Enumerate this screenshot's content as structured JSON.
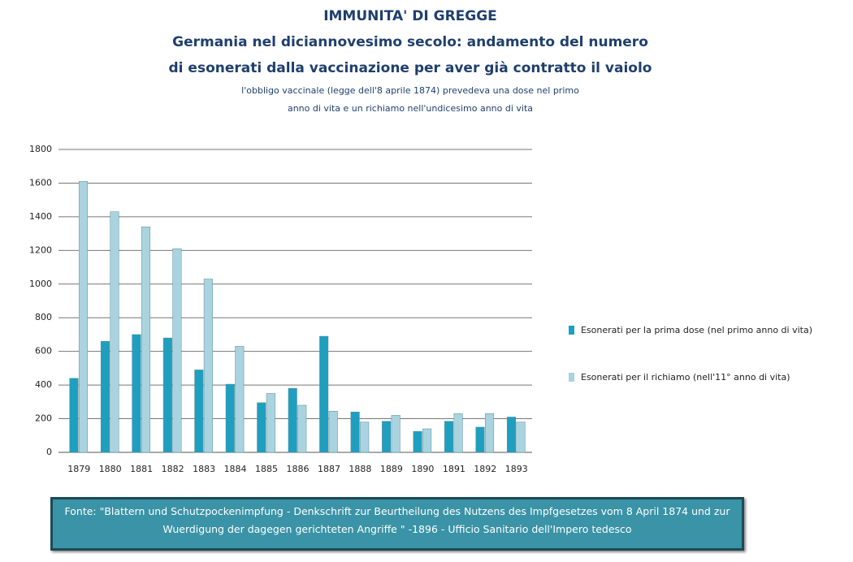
{
  "chart_data": {
    "type": "bar",
    "title": "IMMUNITA' DI GREGGE",
    "subtitle": [
      "Germania nel diciannovesimo  secolo: andamento del numero",
      "di esonerati dalla vaccinazione  per aver già contratto il vaiolo"
    ],
    "note": [
      "l'obbligo vaccinale  (legge dell'8 aprile 1874)   prevedeva una dose nel primo",
      "anno di vita e un richiamo nell'undicesimo anno di vita"
    ],
    "categories": [
      "1879",
      "1880",
      "1881",
      "1882",
      "1883",
      "1884",
      "1885",
      "1886",
      "1887",
      "1888",
      "1889",
      "1890",
      "1891",
      "1892",
      "1893"
    ],
    "series": [
      {
        "name": "Esonerati per la prima dose (nel primo anno di vita)",
        "color": "#1f9fbf",
        "values": [
          440,
          660,
          700,
          680,
          490,
          405,
          295,
          380,
          690,
          240,
          185,
          125,
          185,
          150,
          210
        ]
      },
      {
        "name": "Esonerati per il richiamo (nell'11° anno di vita)",
        "color": "#a9d3df",
        "values": [
          1610,
          1430,
          1340,
          1210,
          1030,
          630,
          350,
          280,
          245,
          180,
          220,
          140,
          230,
          230,
          180
        ]
      }
    ],
    "ylim": [
      0,
      1800
    ],
    "yticks": [
      0,
      200,
      400,
      600,
      800,
      1000,
      1200,
      1400,
      1600,
      1800
    ],
    "grid": true,
    "legend": "right",
    "source": "Fonte: \"Blattern und Schutzpockenimpfung - Denkschrift zur Beurtheilung des Nutzens des Impfgesetzes vom  8 April 1874  und zur Wuerdigung der dagegen gerichteten Angriffe \" -1896 - Ufficio Sanitario dell'Impero tedesco"
  }
}
